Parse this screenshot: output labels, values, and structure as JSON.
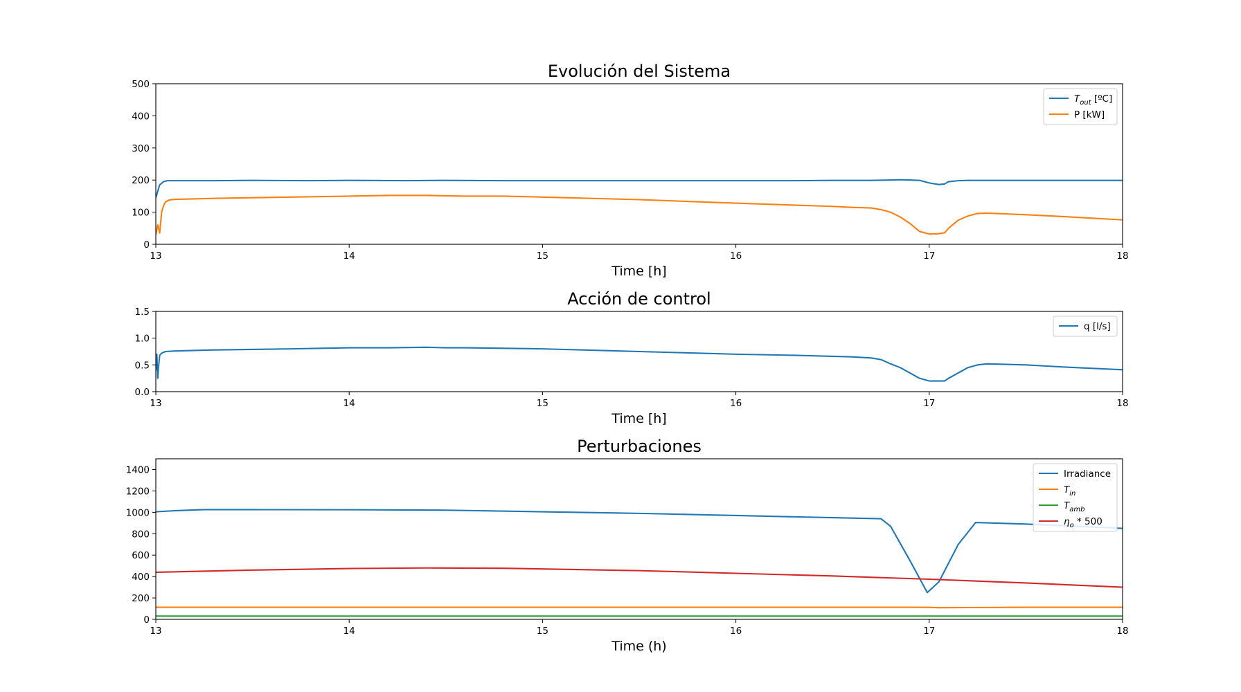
{
  "chart_data": [
    {
      "type": "line",
      "title": "Evolución del Sistema",
      "xlabel": "Time [h]",
      "ylabel": "",
      "xlim": [
        13,
        18
      ],
      "ylim": [
        0,
        500
      ],
      "xticks": [
        "13",
        "14",
        "15",
        "16",
        "17",
        "18"
      ],
      "yticks": [
        "0",
        "100",
        "200",
        "300",
        "400",
        "500"
      ],
      "legend_position": "top-right",
      "series": [
        {
          "name": "T_out [ºC]",
          "legend_main": "T",
          "legend_sub": "out",
          "legend_suffix": " [ºC]",
          "color": "#1f77b4",
          "x": [
            13.0,
            13.02,
            13.04,
            13.06,
            13.1,
            13.3,
            13.5,
            13.8,
            14.0,
            14.3,
            14.5,
            14.8,
            15.0,
            15.5,
            16.0,
            16.3,
            16.5,
            16.7,
            16.8,
            16.85,
            16.9,
            16.95,
            17.0,
            17.05,
            17.08,
            17.1,
            17.15,
            17.2,
            17.4,
            17.6,
            18.0
          ],
          "y": [
            145,
            185,
            195,
            198,
            198,
            198,
            199,
            198,
            199,
            198,
            199,
            198,
            198,
            198,
            198,
            198,
            199,
            199,
            200,
            201,
            200,
            199,
            191,
            186,
            188,
            195,
            198,
            199,
            199,
            199,
            199
          ]
        },
        {
          "name": "P [kW]",
          "color": "#ff7f0e",
          "x": [
            13.0,
            13.01,
            13.02,
            13.03,
            13.04,
            13.05,
            13.07,
            13.1,
            13.3,
            13.5,
            13.7,
            14.0,
            14.2,
            14.4,
            14.5,
            14.6,
            14.8,
            15.0,
            15.5,
            16.0,
            16.3,
            16.5,
            16.6,
            16.7,
            16.75,
            16.8,
            16.85,
            16.9,
            16.95,
            17.0,
            17.05,
            17.08,
            17.1,
            17.15,
            17.2,
            17.25,
            17.3,
            17.5,
            17.7,
            18.0
          ],
          "y": [
            30,
            60,
            35,
            100,
            120,
            132,
            138,
            140,
            143,
            145,
            147,
            150,
            152,
            152,
            151,
            150,
            150,
            147,
            139,
            128,
            122,
            118,
            115,
            113,
            108,
            100,
            85,
            65,
            40,
            32,
            33,
            36,
            50,
            75,
            88,
            96,
            97,
            92,
            86,
            76
          ]
        }
      ]
    },
    {
      "type": "line",
      "title": "Acción de control",
      "xlabel": "Time [h]",
      "ylabel": "",
      "xlim": [
        13,
        18
      ],
      "ylim": [
        0,
        1.5
      ],
      "xticks": [
        "13",
        "14",
        "15",
        "16",
        "17",
        "18"
      ],
      "yticks": [
        "0.0",
        "0.5",
        "1.0",
        "1.5"
      ],
      "legend_position": "top-right",
      "series": [
        {
          "name": "q [l/s]",
          "color": "#1f77b4",
          "x": [
            13.0,
            13.005,
            13.01,
            13.015,
            13.02,
            13.03,
            13.05,
            13.1,
            13.3,
            13.5,
            13.7,
            14.0,
            14.2,
            14.4,
            14.5,
            14.6,
            14.8,
            15.0,
            15.5,
            16.0,
            16.3,
            16.5,
            16.6,
            16.7,
            16.75,
            16.8,
            16.85,
            16.9,
            16.95,
            17.0,
            17.05,
            17.08,
            17.1,
            17.15,
            17.2,
            17.25,
            17.3,
            17.5,
            17.7,
            18.0
          ],
          "y": [
            0.4,
            0.7,
            0.25,
            0.5,
            0.68,
            0.72,
            0.75,
            0.76,
            0.78,
            0.79,
            0.8,
            0.82,
            0.82,
            0.83,
            0.82,
            0.82,
            0.81,
            0.8,
            0.75,
            0.7,
            0.68,
            0.66,
            0.65,
            0.63,
            0.6,
            0.52,
            0.45,
            0.35,
            0.25,
            0.2,
            0.2,
            0.2,
            0.25,
            0.35,
            0.45,
            0.5,
            0.52,
            0.5,
            0.46,
            0.41
          ]
        }
      ]
    },
    {
      "type": "line",
      "title": "Perturbaciones",
      "xlabel": "Time (h)",
      "ylabel": "",
      "xlim": [
        13,
        18
      ],
      "ylim": [
        0,
        1500
      ],
      "xticks": [
        "13",
        "14",
        "15",
        "16",
        "17",
        "18"
      ],
      "yticks": [
        "0",
        "200",
        "400",
        "600",
        "800",
        "1000",
        "1200",
        "1400"
      ],
      "legend_position": "top-right",
      "series": [
        {
          "name": "Irradiance",
          "legend_main": "Irradiance",
          "legend_plain": true,
          "color": "#1f77b4",
          "x": [
            13.0,
            13.1,
            13.25,
            13.5,
            14.0,
            14.5,
            15.0,
            15.5,
            16.0,
            16.5,
            16.75,
            16.8,
            16.9,
            16.99,
            17.05,
            17.15,
            17.24,
            17.5,
            18.0
          ],
          "y": [
            1005,
            1015,
            1025,
            1025,
            1024,
            1020,
            1005,
            990,
            970,
            950,
            940,
            870,
            550,
            250,
            350,
            700,
            905,
            890,
            850
          ]
        },
        {
          "name": "T_in",
          "legend_main": "T",
          "legend_sub": "in",
          "legend_suffix": "",
          "color": "#ff7f0e",
          "x": [
            13.0,
            14.0,
            15.0,
            16.0,
            16.9,
            17.0,
            17.05,
            17.2,
            17.5,
            18.0
          ],
          "y": [
            113,
            113,
            113,
            113,
            113,
            112,
            109,
            110,
            113,
            113
          ]
        },
        {
          "name": "T_amb",
          "legend_main": "T",
          "legend_sub": "amb",
          "legend_suffix": "",
          "color": "#2ca02c",
          "x": [
            13.0,
            18.0
          ],
          "y": [
            30,
            30
          ]
        },
        {
          "name": "η_o * 500",
          "legend_main": "η",
          "legend_sub": "o",
          "legend_suffix": " * 500",
          "color": "#d62728",
          "x": [
            13.0,
            13.5,
            14.0,
            14.4,
            14.8,
            15.5,
            16.0,
            16.5,
            17.0,
            17.5,
            18.0
          ],
          "y": [
            440,
            460,
            475,
            480,
            477,
            455,
            430,
            405,
            375,
            340,
            300
          ]
        }
      ]
    }
  ]
}
